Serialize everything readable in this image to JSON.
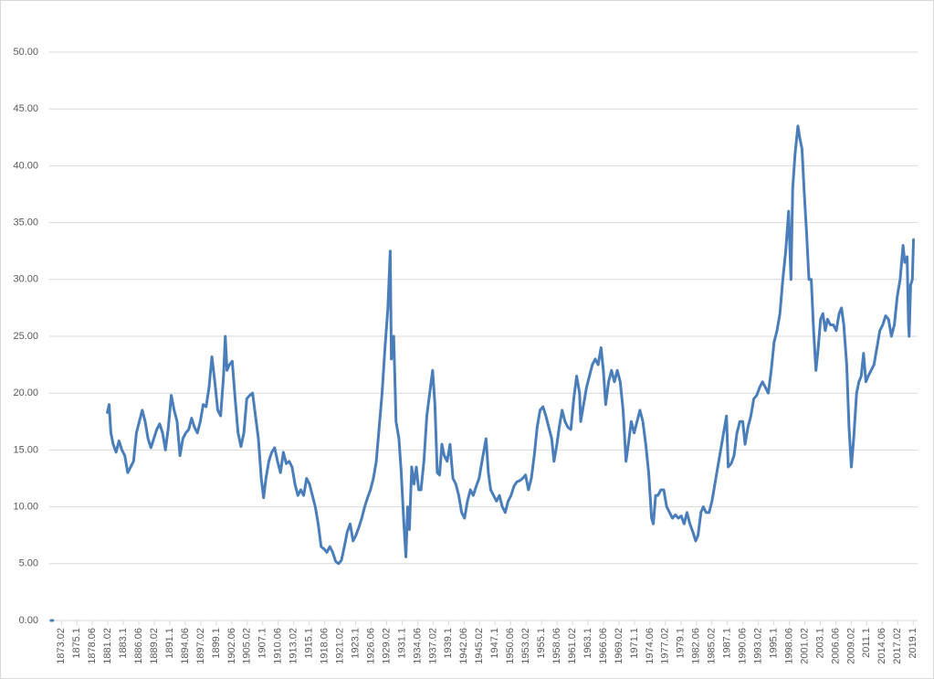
{
  "chart_data": {
    "type": "line",
    "x": [
      1871.3,
      1871.6,
      1876.0,
      1881.0,
      1881.3,
      1881.6,
      1882.0,
      1882.5,
      1883.0,
      1883.5,
      1884.0,
      1884.5,
      1885.0,
      1885.5,
      1886.0,
      1886.5,
      1887.0,
      1887.5,
      1888.0,
      1888.5,
      1889.0,
      1889.5,
      1890.0,
      1890.5,
      1891.0,
      1891.5,
      1892.0,
      1892.5,
      1893.0,
      1893.5,
      1894.0,
      1894.5,
      1895.0,
      1895.5,
      1896.0,
      1896.5,
      1897.0,
      1897.5,
      1898.0,
      1898.5,
      1899.0,
      1899.5,
      1900.0,
      1900.5,
      1901.0,
      1901.3,
      1901.6,
      1902.0,
      1902.5,
      1903.0,
      1903.5,
      1904.0,
      1904.5,
      1905.0,
      1905.5,
      1906.0,
      1906.5,
      1907.0,
      1907.5,
      1907.9,
      1908.3,
      1908.8,
      1909.3,
      1909.8,
      1910.3,
      1910.8,
      1911.3,
      1911.8,
      1912.3,
      1912.8,
      1913.3,
      1913.8,
      1914.3,
      1914.8,
      1915.3,
      1915.8,
      1916.3,
      1916.8,
      1917.3,
      1917.8,
      1918.3,
      1918.8,
      1919.3,
      1919.8,
      1920.3,
      1920.8,
      1921.3,
      1921.8,
      1922.3,
      1922.8,
      1923.3,
      1923.8,
      1924.3,
      1924.8,
      1925.3,
      1925.8,
      1926.3,
      1926.8,
      1927.3,
      1927.8,
      1928.3,
      1928.8,
      1929.3,
      1929.7,
      1929.9,
      1930.3,
      1930.7,
      1931.2,
      1931.6,
      1932.0,
      1932.4,
      1932.7,
      1933.0,
      1933.4,
      1933.8,
      1934.2,
      1934.6,
      1935.0,
      1935.5,
      1936.0,
      1936.5,
      1937.0,
      1937.4,
      1937.8,
      1938.2,
      1938.6,
      1939.0,
      1939.5,
      1940.0,
      1940.5,
      1941.0,
      1941.5,
      1942.0,
      1942.5,
      1943.0,
      1943.5,
      1944.0,
      1944.5,
      1945.0,
      1945.5,
      1946.2,
      1946.6,
      1947.0,
      1947.5,
      1948.0,
      1948.5,
      1949.0,
      1949.5,
      1950.0,
      1950.5,
      1951.0,
      1951.5,
      1952.0,
      1952.5,
      1953.0,
      1953.5,
      1954.0,
      1954.5,
      1955.0,
      1955.5,
      1956.0,
      1956.5,
      1957.0,
      1957.5,
      1957.9,
      1958.4,
      1958.8,
      1959.3,
      1959.8,
      1960.3,
      1960.8,
      1961.3,
      1961.8,
      1962.3,
      1962.5,
      1963.0,
      1963.5,
      1964.0,
      1964.5,
      1965.0,
      1965.5,
      1966.0,
      1966.4,
      1966.8,
      1967.3,
      1967.8,
      1968.3,
      1968.8,
      1969.3,
      1969.8,
      1970.3,
      1970.7,
      1971.2,
      1971.7,
      1972.2,
      1972.7,
      1973.2,
      1973.7,
      1974.2,
      1974.7,
      1975.0,
      1975.4,
      1975.8,
      1976.3,
      1976.8,
      1977.3,
      1977.8,
      1978.3,
      1978.8,
      1979.3,
      1979.8,
      1980.3,
      1980.8,
      1981.3,
      1981.8,
      1982.3,
      1982.7,
      1983.2,
      1983.6,
      1984.1,
      1984.6,
      1985.1,
      1985.6,
      1986.1,
      1986.6,
      1987.1,
      1987.6,
      1987.9,
      1988.4,
      1988.9,
      1989.4,
      1989.9,
      1990.4,
      1990.8,
      1991.3,
      1991.8,
      1992.3,
      1992.8,
      1993.3,
      1993.8,
      1994.3,
      1994.8,
      1995.3,
      1995.8,
      1996.3,
      1996.8,
      1997.3,
      1997.8,
      1998.3,
      1998.7,
      1999.0,
      1999.4,
      1999.9,
      2000.2,
      2000.6,
      2001.0,
      2001.4,
      2001.8,
      2002.2,
      2002.6,
      2003.0,
      2003.4,
      2003.8,
      2004.2,
      2004.6,
      2005.0,
      2005.5,
      2006.0,
      2006.5,
      2007.0,
      2007.4,
      2007.8,
      2008.3,
      2008.7,
      2009.1,
      2009.5,
      2010.0,
      2010.4,
      2010.8,
      2011.2,
      2011.6,
      2012.0,
      2012.5,
      2013.0,
      2013.5,
      2014.0,
      2014.5,
      2015.0,
      2015.5,
      2016.0,
      2016.5,
      2017.0,
      2017.5,
      2018.0,
      2018.3,
      2018.7,
      2018.95,
      2019.05,
      2019.3,
      2019.6,
      2019.8
    ],
    "series": [
      {
        "color": "#4a7ebb",
        "values": [
          0,
          0,
          null,
          18.3,
          19.0,
          16.5,
          15.5,
          14.8,
          15.8,
          15.0,
          14.5,
          13.0,
          13.5,
          14.0,
          16.5,
          17.5,
          18.5,
          17.5,
          16.0,
          15.2,
          16.0,
          16.8,
          17.3,
          16.5,
          15.0,
          17.0,
          19.8,
          18.5,
          17.5,
          14.5,
          16.0,
          16.5,
          16.8,
          17.8,
          17.0,
          16.5,
          17.5,
          19.0,
          18.8,
          20.5,
          23.2,
          21.0,
          18.5,
          18.0,
          21.5,
          25.0,
          22.0,
          22.5,
          22.8,
          19.5,
          16.5,
          15.3,
          16.5,
          19.5,
          19.8,
          20.0,
          18.0,
          16.0,
          12.5,
          10.8,
          12.5,
          14.0,
          14.8,
          15.2,
          14.0,
          13.0,
          14.8,
          13.8,
          14.0,
          13.5,
          12.0,
          11.0,
          11.5,
          11.0,
          12.5,
          12.0,
          11.0,
          10.0,
          8.5,
          6.5,
          6.3,
          6.0,
          6.5,
          6.0,
          5.2,
          5.0,
          5.3,
          6.5,
          7.8,
          8.5,
          7.0,
          7.5,
          8.2,
          9.0,
          10.0,
          10.8,
          11.5,
          12.5,
          14.0,
          17.0,
          20.0,
          24.0,
          27.5,
          32.5,
          23.0,
          25.0,
          17.5,
          16.0,
          13.0,
          9.0,
          5.6,
          10.0,
          8.0,
          13.5,
          12.0,
          13.5,
          11.5,
          11.5,
          14.0,
          18.0,
          20.0,
          22.0,
          19.0,
          13.0,
          12.8,
          15.5,
          14.5,
          14.0,
          15.5,
          12.5,
          12.0,
          11.0,
          9.5,
          9.0,
          10.5,
          11.5,
          11.0,
          11.8,
          12.5,
          14.0,
          16.0,
          13.0,
          11.5,
          11.0,
          10.5,
          11.0,
          10.0,
          9.5,
          10.5,
          11.0,
          11.8,
          12.2,
          12.3,
          12.5,
          12.8,
          11.5,
          12.5,
          14.5,
          17.0,
          18.5,
          18.8,
          18.0,
          17.0,
          16.0,
          14.0,
          15.5,
          17.0,
          18.5,
          17.5,
          17.0,
          16.8,
          19.5,
          21.5,
          20.0,
          17.5,
          19.0,
          20.5,
          21.5,
          22.5,
          23.0,
          22.5,
          24.0,
          22.0,
          19.0,
          21.0,
          22.0,
          21.0,
          22.0,
          21.0,
          18.5,
          14.0,
          15.5,
          17.5,
          16.5,
          17.5,
          18.5,
          17.5,
          15.5,
          13.0,
          9.0,
          8.5,
          11.0,
          11.0,
          11.5,
          11.5,
          10.0,
          9.5,
          9.0,
          9.3,
          9.0,
          9.2,
          8.5,
          9.5,
          8.5,
          7.8,
          7.0,
          7.5,
          9.5,
          10.0,
          9.5,
          9.5,
          10.5,
          12.0,
          13.5,
          15.0,
          16.5,
          18.0,
          13.5,
          13.8,
          14.5,
          16.5,
          17.5,
          17.5,
          15.5,
          17.0,
          18.0,
          19.5,
          19.8,
          20.5,
          21.0,
          20.5,
          20.0,
          22.0,
          24.5,
          25.5,
          27.0,
          30.0,
          32.5,
          36.0,
          30.0,
          38.0,
          41.0,
          43.5,
          42.5,
          41.5,
          37.5,
          34.0,
          30.0,
          30.0,
          25.5,
          22.0,
          24.0,
          26.5,
          27.0,
          25.5,
          26.5,
          26.0,
          26.0,
          25.5,
          27.0,
          27.5,
          26.0,
          22.5,
          17.0,
          13.5,
          16.0,
          20.0,
          21.0,
          21.5,
          23.5,
          21.0,
          21.5,
          22.0,
          22.5,
          24.0,
          25.5,
          26.0,
          26.8,
          26.5,
          25.0,
          26.0,
          28.5,
          30.0,
          33.0,
          31.5,
          32.0,
          26.0,
          25.0,
          29.5,
          30.0,
          33.5
        ]
      }
    ],
    "xlim": [
      1871,
      2020.5
    ],
    "ylim": [
      0,
      50
    ],
    "yticks": [
      {
        "value": 0,
        "label": "0.00"
      },
      {
        "value": 5,
        "label": "5.00"
      },
      {
        "value": 10,
        "label": "10.00"
      },
      {
        "value": 15,
        "label": "15.00"
      },
      {
        "value": 20,
        "label": "20.00"
      },
      {
        "value": 25,
        "label": "25.00"
      },
      {
        "value": 30,
        "label": "30.00"
      },
      {
        "value": 35,
        "label": "35.00"
      },
      {
        "value": 40,
        "label": "40.00"
      },
      {
        "value": 45,
        "label": "45.00"
      },
      {
        "value": 50,
        "label": "50.00"
      }
    ],
    "xticks": [
      {
        "value": 1873.083,
        "label": "1873.02"
      },
      {
        "value": 1875.75,
        "label": "1875.1"
      },
      {
        "value": 1878.417,
        "label": "1878.06"
      },
      {
        "value": 1881.083,
        "label": "1881.02"
      },
      {
        "value": 1883.75,
        "label": "1883.1"
      },
      {
        "value": 1886.417,
        "label": "1886.06"
      },
      {
        "value": 1889.083,
        "label": "1889.02"
      },
      {
        "value": 1891.75,
        "label": "1891.1"
      },
      {
        "value": 1894.417,
        "label": "1894.06"
      },
      {
        "value": 1897.083,
        "label": "1897.02"
      },
      {
        "value": 1899.75,
        "label": "1899.1"
      },
      {
        "value": 1902.417,
        "label": "1902.06"
      },
      {
        "value": 1905.083,
        "label": "1905.02"
      },
      {
        "value": 1907.75,
        "label": "1907.1"
      },
      {
        "value": 1910.417,
        "label": "1910.06"
      },
      {
        "value": 1913.083,
        "label": "1913.02"
      },
      {
        "value": 1915.75,
        "label": "1915.1"
      },
      {
        "value": 1918.417,
        "label": "1918.06"
      },
      {
        "value": 1921.083,
        "label": "1921.02"
      },
      {
        "value": 1923.75,
        "label": "1923.1"
      },
      {
        "value": 1926.417,
        "label": "1926.06"
      },
      {
        "value": 1929.083,
        "label": "1929.02"
      },
      {
        "value": 1931.75,
        "label": "1931.1"
      },
      {
        "value": 1934.417,
        "label": "1934.06"
      },
      {
        "value": 1937.083,
        "label": "1937.02"
      },
      {
        "value": 1939.75,
        "label": "1939.1"
      },
      {
        "value": 1942.417,
        "label": "1942.06"
      },
      {
        "value": 1945.083,
        "label": "1945.02"
      },
      {
        "value": 1947.75,
        "label": "1947.1"
      },
      {
        "value": 1950.417,
        "label": "1950.06"
      },
      {
        "value": 1953.083,
        "label": "1953.02"
      },
      {
        "value": 1955.75,
        "label": "1955.1"
      },
      {
        "value": 1958.417,
        "label": "1958.06"
      },
      {
        "value": 1961.083,
        "label": "1961.02"
      },
      {
        "value": 1963.75,
        "label": "1963.1"
      },
      {
        "value": 1966.417,
        "label": "1966.06"
      },
      {
        "value": 1969.083,
        "label": "1969.02"
      },
      {
        "value": 1971.75,
        "label": "1971.1"
      },
      {
        "value": 1974.417,
        "label": "1974.06"
      },
      {
        "value": 1977.083,
        "label": "1977.02"
      },
      {
        "value": 1979.75,
        "label": "1979.1"
      },
      {
        "value": 1982.417,
        "label": "1982.06"
      },
      {
        "value": 1985.083,
        "label": "1985.02"
      },
      {
        "value": 1987.75,
        "label": "1987.1"
      },
      {
        "value": 1990.417,
        "label": "1990.06"
      },
      {
        "value": 1993.083,
        "label": "1993.02"
      },
      {
        "value": 1995.75,
        "label": "1995.1"
      },
      {
        "value": 1998.417,
        "label": "1998.06"
      },
      {
        "value": 2001.083,
        "label": "2001.02"
      },
      {
        "value": 2003.75,
        "label": "2003.1"
      },
      {
        "value": 2006.417,
        "label": "2006.06"
      },
      {
        "value": 2009.083,
        "label": "2009.02"
      },
      {
        "value": 2011.75,
        "label": "2011.1"
      },
      {
        "value": 2014.417,
        "label": "2014.06"
      },
      {
        "value": 2017.083,
        "label": "2017.02"
      },
      {
        "value": 2019.75,
        "label": "2019.1"
      }
    ],
    "grid": true
  }
}
